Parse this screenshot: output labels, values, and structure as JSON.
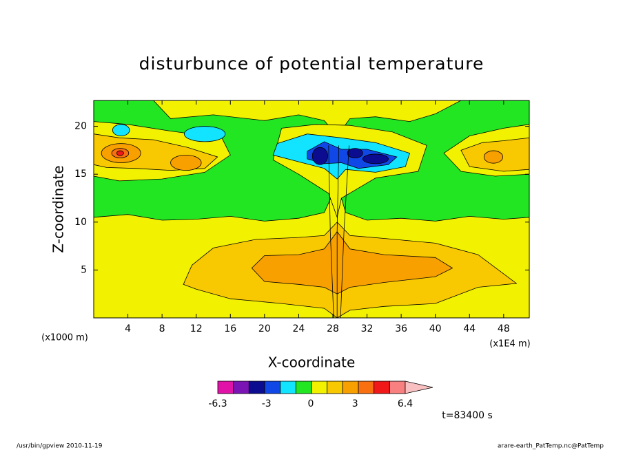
{
  "chart_data": {
    "type": "contour",
    "title": "disturbunce of potential temperature",
    "x_label": "X-coordinate",
    "y_label": "Z-coordinate",
    "x_unit": "(x1E4 m)",
    "y_unit": "(x1000 m)",
    "xlim": [
      0,
      51
    ],
    "xticks": [
      4,
      8,
      12,
      16,
      20,
      24,
      28,
      32,
      36,
      40,
      44,
      48
    ],
    "ylim": [
      0,
      22.7
    ],
    "yticks": [
      5,
      10,
      15,
      20
    ],
    "colorbar": {
      "clim": [
        -6.3,
        6.4
      ],
      "ticks": [
        -6.3,
        -3,
        0,
        3,
        6.4
      ],
      "colors": [
        "#e012a8",
        "#7a14b4",
        "#0c0c90",
        "#1048e8",
        "#12e4ff",
        "#22e622",
        "#f2f200",
        "#f8c800",
        "#f8a000",
        "#f87010",
        "#f01818",
        "#f88080"
      ],
      "extend_color": "#f8c0c0"
    },
    "annotation": "t=83400 s",
    "footer_left": "/usr/bin/gpview   2010-11-19",
    "footer_right": "arare-earth_PatTemp.nc@PatTemp"
  }
}
